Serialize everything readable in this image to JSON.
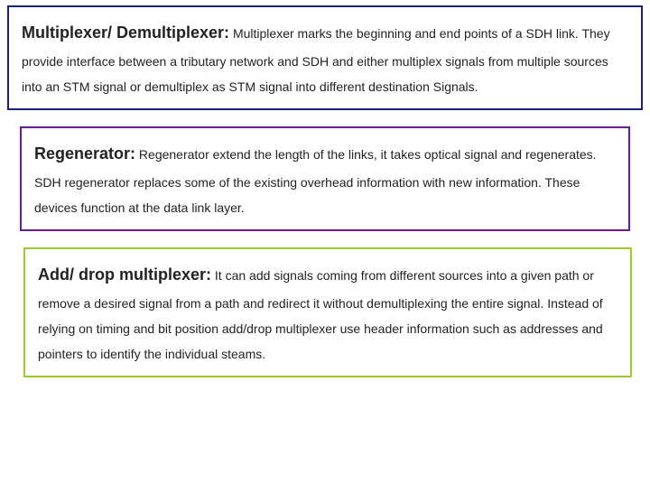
{
  "boxes": [
    {
      "border_color": "#1a237e",
      "title": "Multiplexer/ Demultiplexer:",
      "body": " Multiplexer marks the beginning and end points of a SDH link. They provide interface between a tributary network and SDH and either multiplex signals from multiple sources into an STM signal or demultiplex as STM signal into different destination Signals.",
      "title_fontsize": 18,
      "body_fontsize": 14
    },
    {
      "border_color": "#6a1b9a",
      "title": "Regenerator:",
      "body": "  Regenerator extend the length of the links, it takes optical signal and regenerates. SDH regenerator replaces some of the existing overhead information with new information. These devices function at the data link layer.",
      "title_fontsize": 18,
      "body_fontsize": 14
    },
    {
      "border_color": "#9ccc2a",
      "title": "Add/ drop multiplexer:",
      "body": " It can add signals coming from different sources into a given path or remove a desired signal from a path and redirect it without demultiplexing the entire signal. Instead of relying on timing and bit position add/drop multiplexer use header information such as addresses and pointers to identify the individual steams.",
      "title_fontsize": 18,
      "body_fontsize": 14
    }
  ],
  "background_color": "#ffffff"
}
